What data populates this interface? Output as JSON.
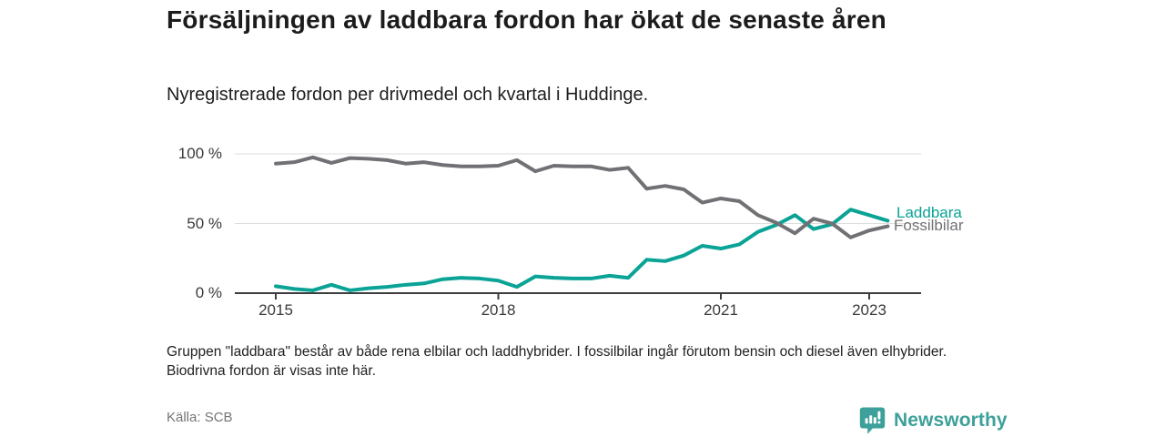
{
  "header": {
    "title": "Försäljningen av laddbara fordon har ökat de senaste åren",
    "subtitle": "Nyregistrerade fordon per drivmedel och kvartal i Huddinge."
  },
  "chart_data": {
    "type": "line",
    "title": "Nyregistrerade fordon per drivmedel och kvartal i Huddinge",
    "x_unit": "quarter",
    "categories": [
      "2015Q1",
      "2015Q2",
      "2015Q3",
      "2015Q4",
      "2016Q1",
      "2016Q2",
      "2016Q3",
      "2016Q4",
      "2017Q1",
      "2017Q2",
      "2017Q3",
      "2017Q4",
      "2018Q1",
      "2018Q2",
      "2018Q3",
      "2018Q4",
      "2019Q1",
      "2019Q2",
      "2019Q3",
      "2019Q4",
      "2020Q1",
      "2020Q2",
      "2020Q3",
      "2020Q4",
      "2021Q1",
      "2021Q2",
      "2021Q3",
      "2021Q4",
      "2022Q1",
      "2022Q2",
      "2022Q3",
      "2022Q4",
      "2023Q1",
      "2023Q2"
    ],
    "series": [
      {
        "name": "Laddbara",
        "color": "#0aa396",
        "values": [
          5,
          3,
          2,
          6,
          2,
          3.5,
          4.5,
          6,
          7,
          10,
          11,
          10.5,
          9,
          4.5,
          12,
          11,
          10.5,
          10.5,
          12.5,
          11,
          24,
          23,
          27,
          34,
          32,
          35,
          44,
          49,
          56,
          46,
          49.5,
          60,
          56,
          52
        ]
      },
      {
        "name": "Fossilbilar",
        "color": "#717175",
        "values": [
          93,
          94,
          97.5,
          93.5,
          97,
          96.5,
          95.5,
          93,
          94,
          92,
          91,
          91,
          91.5,
          95.5,
          87.5,
          91.5,
          91,
          91,
          88.5,
          90,
          75,
          77,
          74.5,
          65,
          68,
          66,
          56,
          50.5,
          43,
          53.5,
          50,
          40,
          45,
          48
        ]
      }
    ],
    "y_axis": {
      "ticks": [
        {
          "label": "100 %",
          "value": 100
        },
        {
          "label": "50 %",
          "value": 50
        },
        {
          "label": "0 %",
          "value": 0
        }
      ],
      "ylim": [
        0,
        100
      ],
      "grid": true
    },
    "x_axis": {
      "ticks": [
        {
          "label": "2015",
          "index": 0
        },
        {
          "label": "2018",
          "index": 12
        },
        {
          "label": "2021",
          "index": 24
        },
        {
          "label": "2023",
          "index": 32
        }
      ]
    },
    "legend_position": "end-of-line-labels"
  },
  "footnote": "Gruppen \"laddbara\" består av både rena elbilar och laddhybrider. I fossilbilar ingår förutom bensin och diesel även elhybrider. Biodrivna fordon är visas inte här.",
  "source": "Källa: SCB",
  "branding": {
    "name": "Newsworthy",
    "icon": "bar-chart-speech-bubble-icon",
    "color": "#3da09a"
  }
}
